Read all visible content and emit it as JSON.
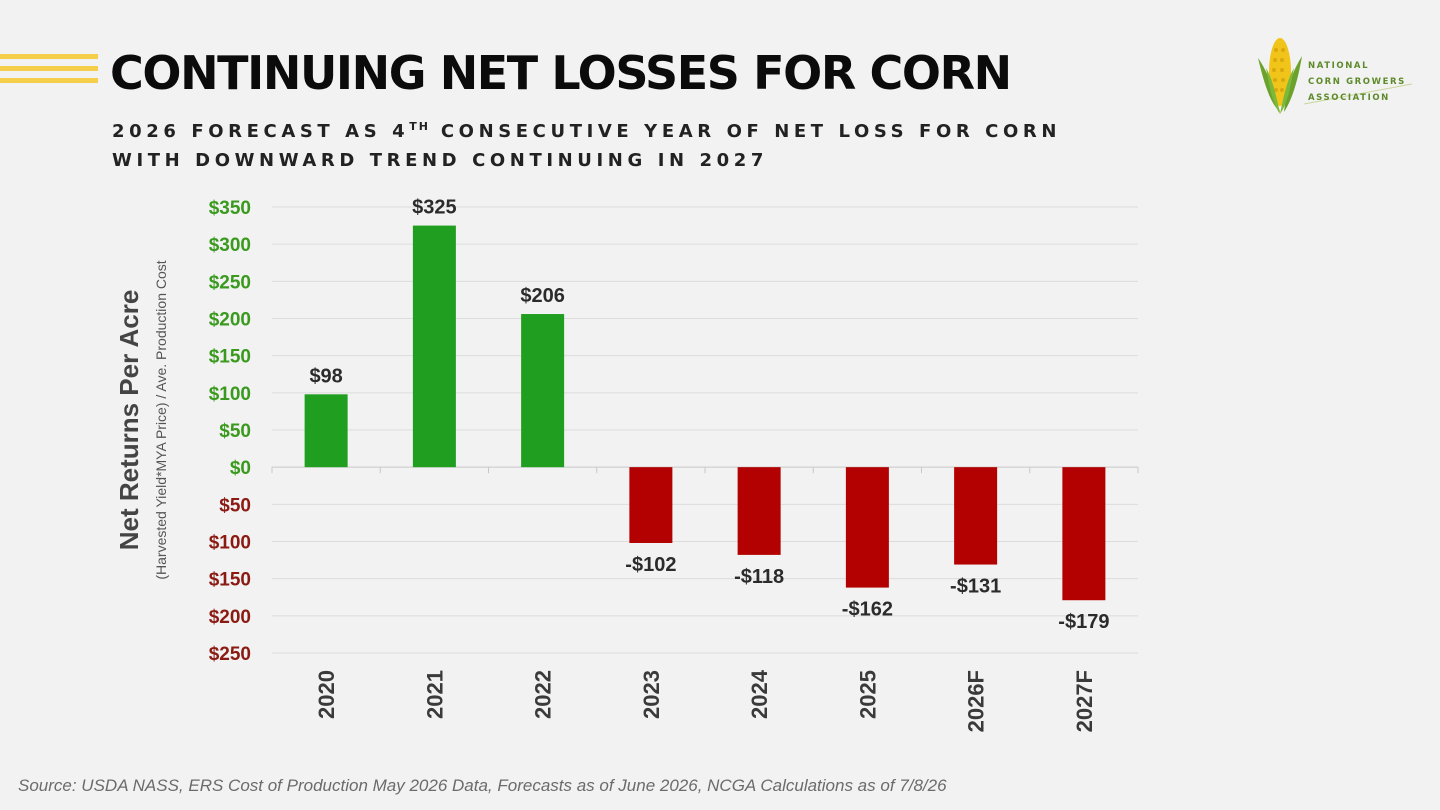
{
  "header": {
    "title": "CONTINUING NET LOSSES FOR CORN",
    "subtitle_line1_before": "2026 FORECAST AS 4",
    "subtitle_line1_sup": "TH",
    "subtitle_line1_after": " CONSECUTIVE YEAR OF NET LOSS FOR CORN",
    "subtitle_line2": "WITH DOWNWARD TREND CONTINUING IN 2027"
  },
  "logo": {
    "line1": "NATIONAL",
    "line2": "CORN GROWERS",
    "line3": "ASSOCIATION"
  },
  "footer": {
    "source": "Source: USDA NASS, ERS Cost of Production May 2026 Data, Forecasts as of June 2026, NCGA Calculations as of 7/8/26"
  },
  "colors": {
    "positive": "#1f9e1f",
    "negative": "#b30000",
    "positive_tick": "#3a9a1e",
    "negative_tick": "#8b1a12"
  },
  "chart_data": {
    "type": "bar",
    "categories": [
      "2020",
      "2021",
      "2022",
      "2023",
      "2024",
      "2025",
      "2026F",
      "2027F"
    ],
    "values": [
      98,
      325,
      206,
      -102,
      -118,
      -162,
      -131,
      -179
    ],
    "data_labels": [
      "$98",
      "$325",
      "$206",
      "-$102",
      "-$118",
      "-$162",
      "-$131",
      "-$179"
    ],
    "ylabel": "Net Returns Per Acre",
    "ylabel_sub": "(Harvested Yield*MYA Price) / Ave. Production Cost",
    "ylim": [
      -250,
      350
    ],
    "yticks": [
      350,
      300,
      250,
      200,
      150,
      100,
      50,
      0,
      -50,
      -100,
      -150,
      -200,
      -250
    ],
    "ytick_labels": [
      "$350",
      "$300",
      "$250",
      "$200",
      "$150",
      "$100",
      "$50",
      "$0",
      "$50",
      "$100",
      "$150",
      "$200",
      "$250"
    ],
    "grid": true,
    "legend": "none"
  }
}
